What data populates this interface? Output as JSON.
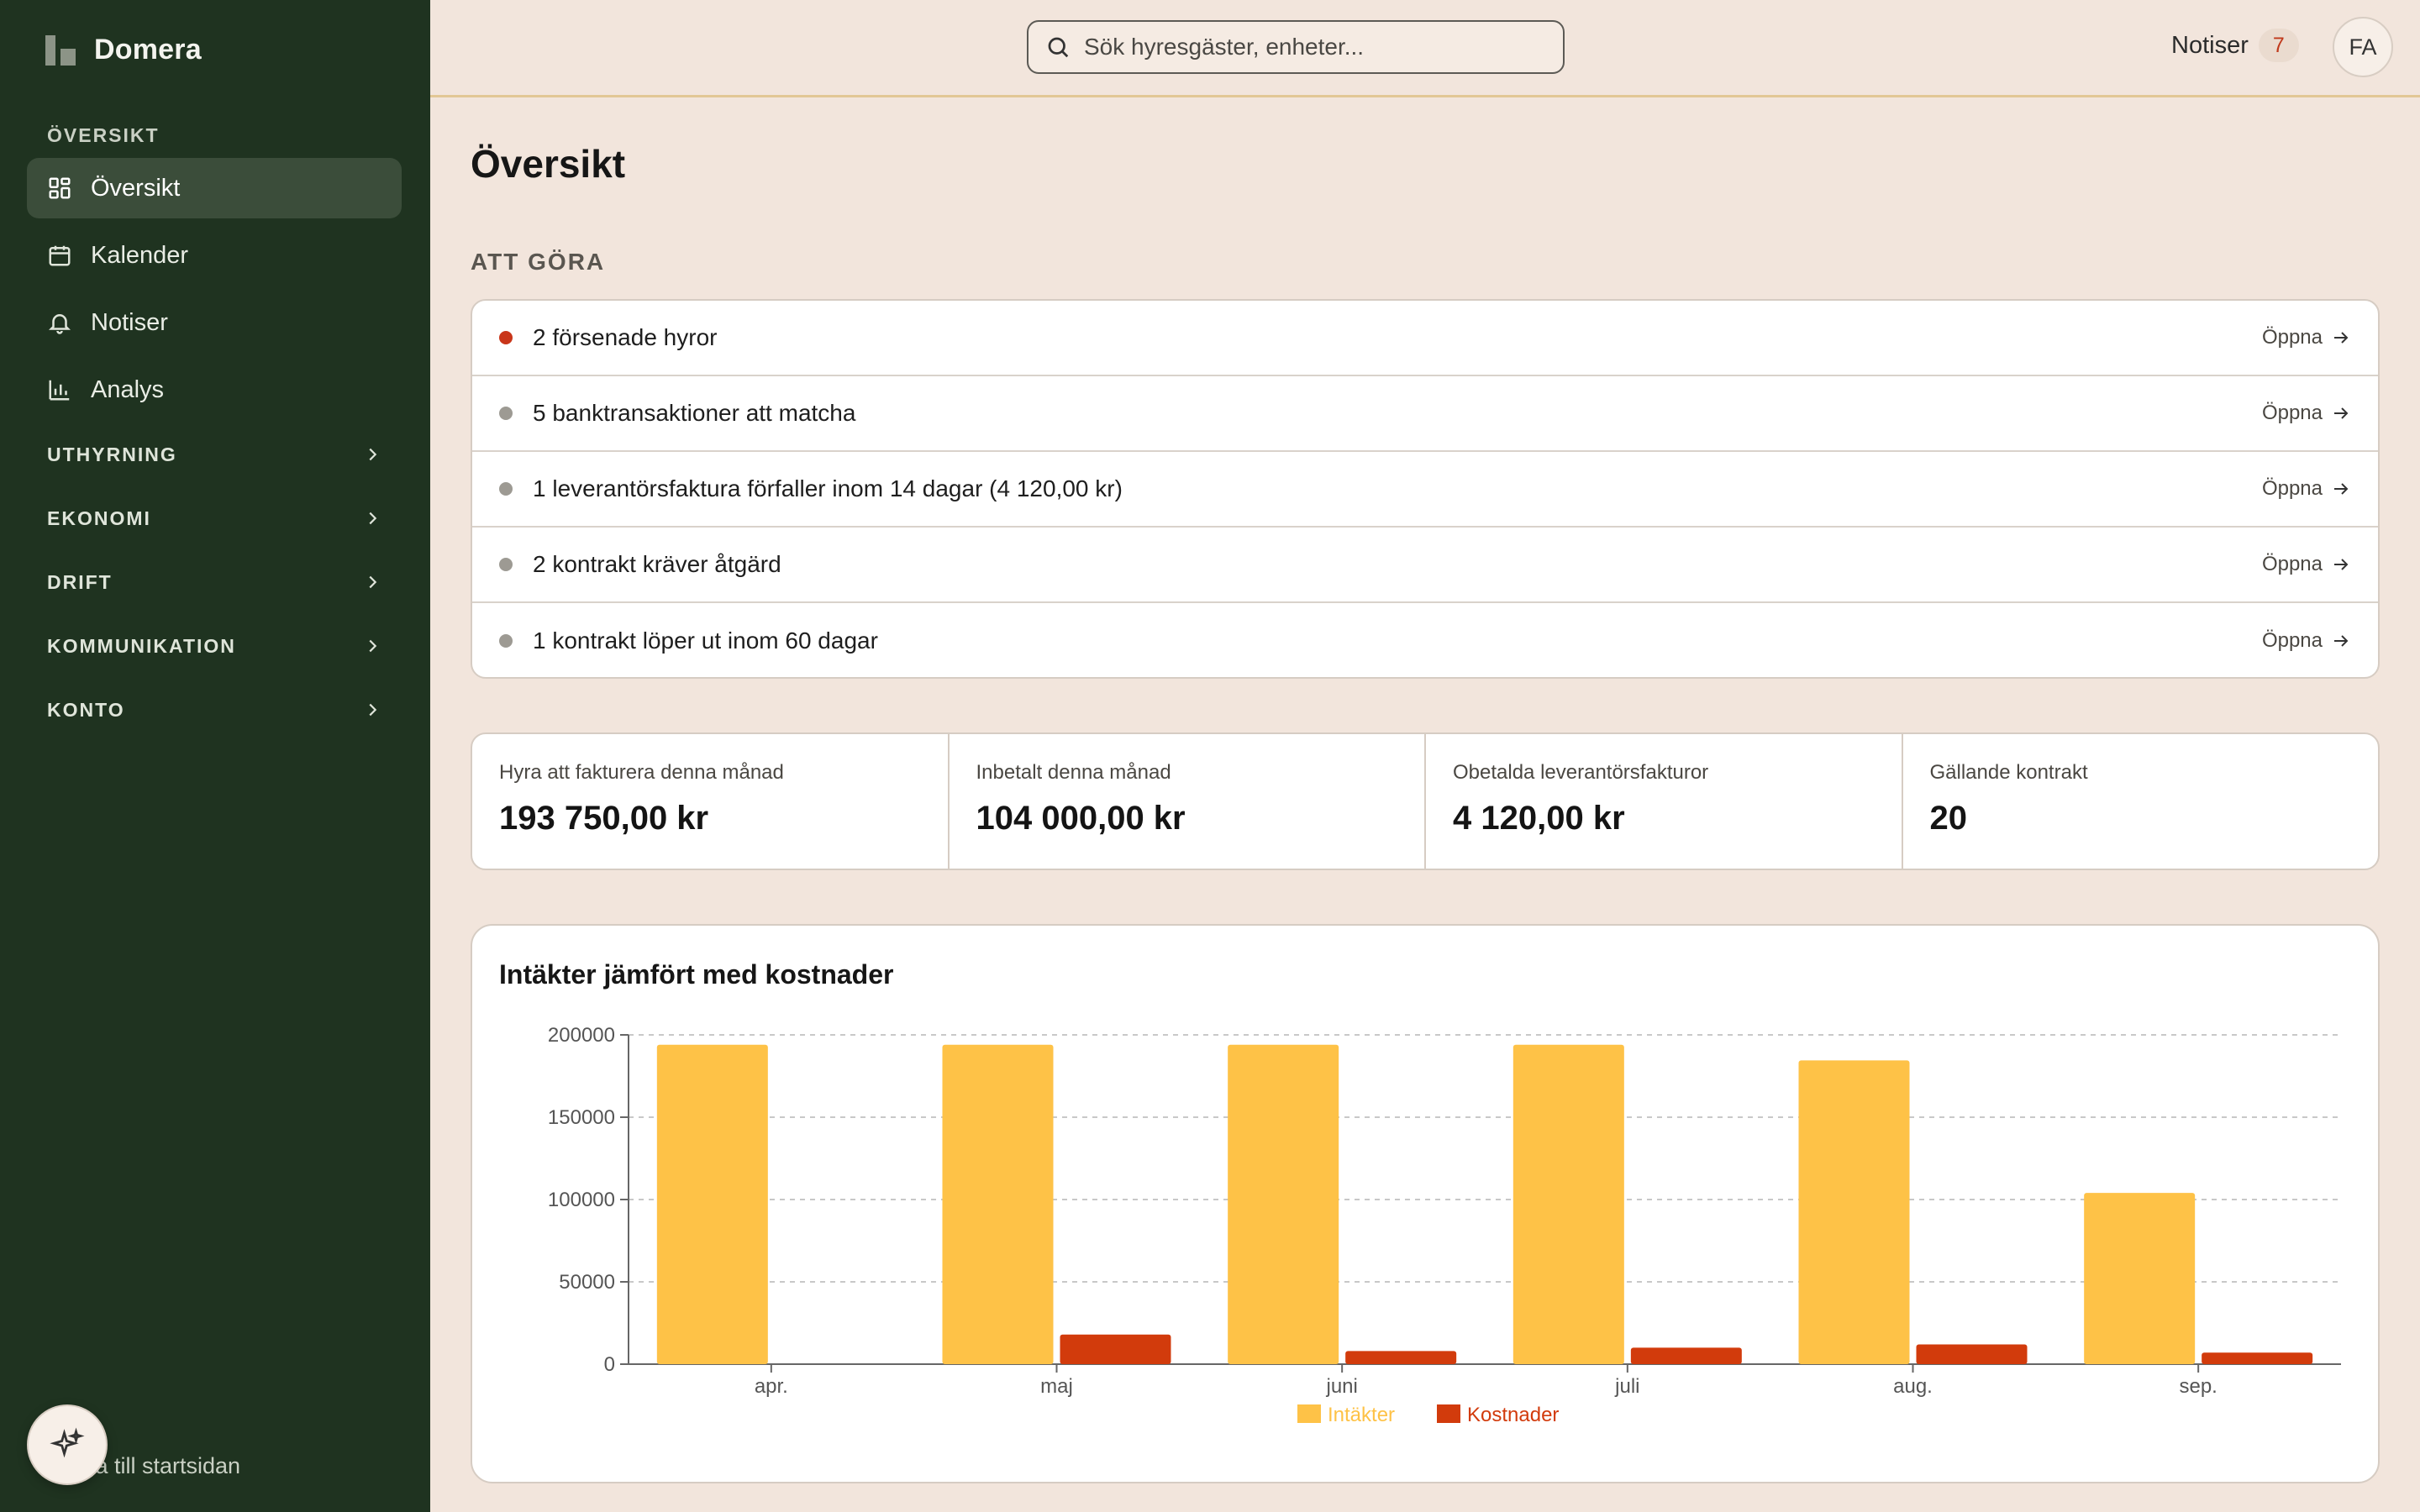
{
  "app": {
    "name": "Domera"
  },
  "sidebar": {
    "section_label": "ÖVERSIKT",
    "items": [
      {
        "label": "Översikt",
        "icon": "dashboard-icon",
        "active": true
      },
      {
        "label": "Kalender",
        "icon": "calendar-icon",
        "active": false
      },
      {
        "label": "Notiser",
        "icon": "bell-icon",
        "active": false
      },
      {
        "label": "Analys",
        "icon": "bar-chart-icon",
        "active": false
      }
    ],
    "groups": [
      {
        "label": "UTHYRNING"
      },
      {
        "label": "EKONOMI"
      },
      {
        "label": "DRIFT"
      },
      {
        "label": "KOMMUNIKATION"
      },
      {
        "label": "KONTO"
      }
    ],
    "back_label": "Tillbaka till startsidan",
    "back_label_visible": "ka till startsidan"
  },
  "topbar": {
    "search_placeholder": "Sök hyresgäster, enheter...",
    "notif_label": "Notiser",
    "notif_count": "7",
    "avatar_initials": "FA"
  },
  "main": {
    "title": "Översikt",
    "todo_label": "ATT GÖRA",
    "open_label": "Öppna",
    "todos": [
      {
        "text": "2 försenade hyror",
        "status": "urgent"
      },
      {
        "text": "5 banktransaktioner att matcha",
        "status": "normal"
      },
      {
        "text": "1 leverantörsfaktura förfaller inom 14 dagar (4 120,00 kr)",
        "status": "normal"
      },
      {
        "text": "2 kontrakt kräver åtgärd",
        "status": "normal"
      },
      {
        "text": "1 kontrakt löper ut inom 60 dagar",
        "status": "normal"
      }
    ],
    "stats": [
      {
        "label": "Hyra att fakturera denna månad",
        "value": "193 750,00 kr"
      },
      {
        "label": "Inbetalt denna månad",
        "value": "104 000,00 kr"
      },
      {
        "label": "Obetalda leverantörsfakturor",
        "value": "4 120,00 kr"
      },
      {
        "label": "Gällande kontrakt",
        "value": "20"
      }
    ]
  },
  "colors": {
    "sidebar_bg": "#1f3320",
    "page_bg": "#f2e5dc",
    "income": "#fec247",
    "cost": "#d23b0c",
    "urgent_dot": "#c9361a"
  },
  "chart_data": {
    "type": "bar",
    "title": "Intäkter jämfört med kostnader",
    "categories": [
      "apr.",
      "maj",
      "juni",
      "juli",
      "aug.",
      "sep."
    ],
    "series": [
      {
        "name": "Intäkter",
        "color": "#fec247",
        "values": [
          194000,
          194000,
          194000,
          194000,
          184500,
          104000
        ]
      },
      {
        "name": "Kostnader",
        "color": "#d23b0c",
        "values": [
          0,
          18000,
          8000,
          10000,
          12000,
          7000
        ]
      }
    ],
    "ylim": [
      0,
      200000
    ],
    "yticks": [
      "0",
      "50000",
      "100000",
      "150000",
      "200000"
    ],
    "grid": true,
    "legend": "bottom-center"
  }
}
